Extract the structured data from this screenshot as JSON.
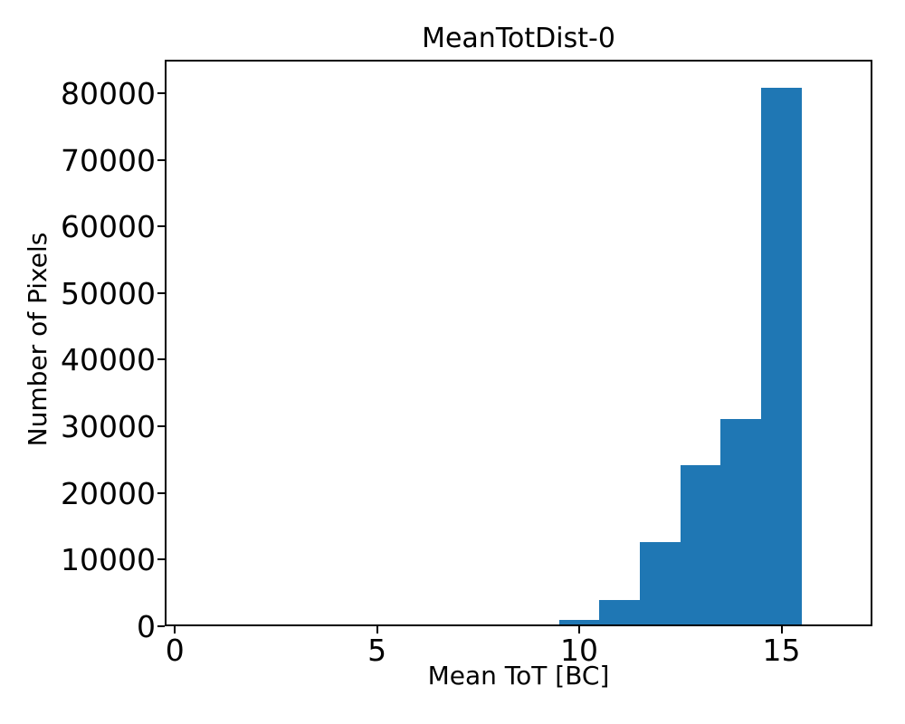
{
  "chart_data": {
    "type": "bar",
    "subtype": "histogram",
    "title": "MeanTotDist-0",
    "xlabel": "Mean ToT [BC]",
    "ylabel": "Number of Pixels",
    "bin_edges": [
      8.5,
      9.5,
      10.5,
      11.5,
      12.5,
      13.5,
      14.5,
      15.5
    ],
    "values": [
      300,
      950,
      4000,
      12700,
      24200,
      31100,
      80800
    ],
    "xlim": [
      -0.25,
      17.25
    ],
    "ylim": [
      0,
      85000
    ],
    "x_ticks": [
      0,
      5,
      10,
      15
    ],
    "y_ticks": [
      0,
      10000,
      20000,
      30000,
      40000,
      50000,
      60000,
      70000,
      80000
    ],
    "grid": false,
    "legend": null,
    "bar_color": "#1f77b4",
    "text_color": "#000000",
    "background_color": "#ffffff"
  }
}
